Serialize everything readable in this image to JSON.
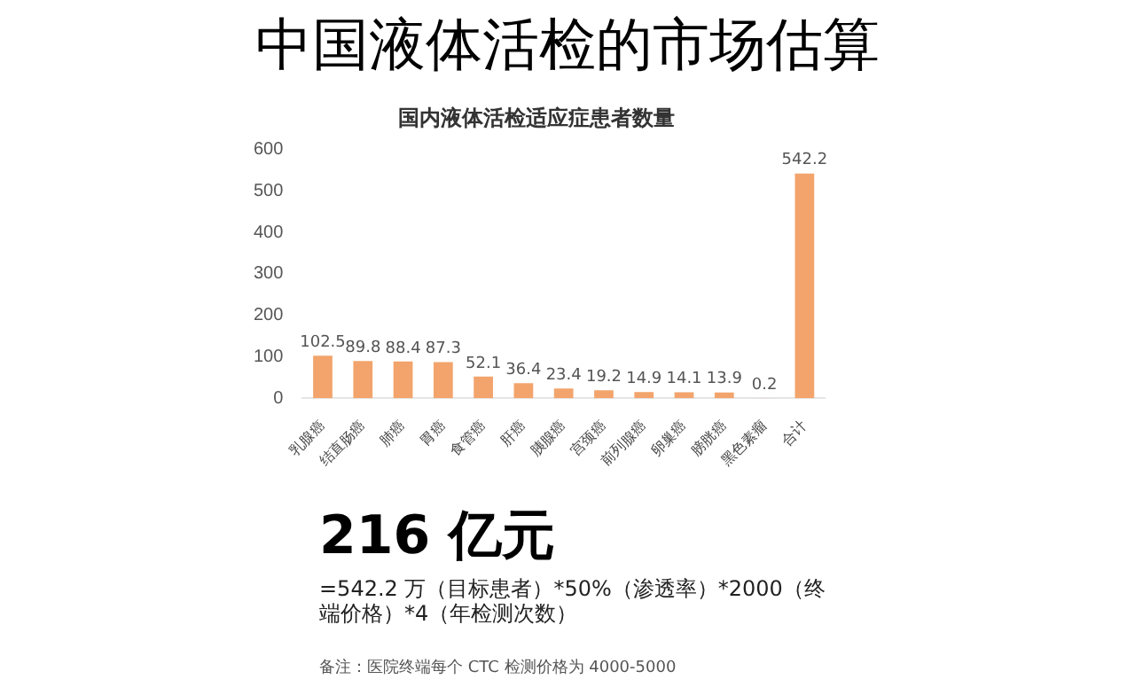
{
  "chart_data": {
    "type": "bar",
    "title": "中国液体活检的市场估算",
    "subtitle": "国内液体活检适应症患者数量",
    "categories": [
      "乳腺癌",
      "结直肠癌",
      "肺癌",
      "胃癌",
      "食管癌",
      "肝癌",
      "胰腺癌",
      "宫颈癌",
      "前列腺癌",
      "卵巢癌",
      "膀胱癌",
      "黑色素瘤",
      "合计"
    ],
    "values": [
      102.5,
      89.8,
      88.4,
      87.3,
      52.1,
      36.4,
      23.4,
      19.2,
      14.9,
      14.1,
      13.9,
      0.2,
      542.2
    ],
    "color": "#f2a46c",
    "ylim": [
      0,
      600
    ],
    "yticks": [
      0,
      100,
      200,
      300,
      400,
      500,
      600
    ],
    "data_labels": true,
    "annotations": [
      "216 亿元",
      "=542.2 万（目标患者）*50%（渗透率）*2000（终端价格）*4（年检测次数）",
      "备注：医院终端每个 CTC 检测价格为 4000-5000"
    ]
  }
}
